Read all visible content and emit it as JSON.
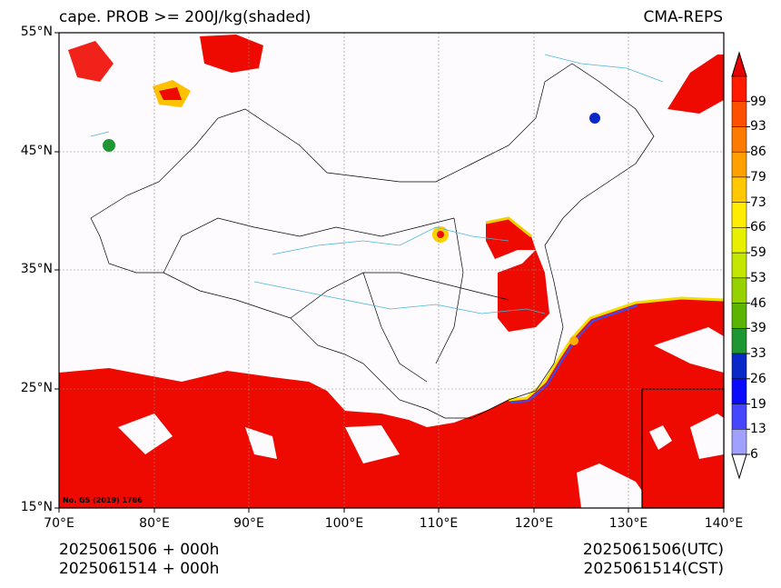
{
  "title": {
    "left": "cape. PROB >= 200J/kg(shaded)",
    "right": "CMA-REPS"
  },
  "axes": {
    "y_ticks": [
      "55°N",
      "45°N",
      "35°N",
      "25°N",
      "15°N"
    ],
    "x_ticks": [
      "70°E",
      "80°E",
      "90°E",
      "100°E",
      "110°E",
      "120°E",
      "130°E",
      "140°E"
    ],
    "lat_range": [
      15,
      55
    ],
    "lon_range": [
      70,
      140
    ]
  },
  "footer": {
    "left_line1": "2025061506  +  000h",
    "left_line2": "2025061514  +  000h",
    "right_line1": "2025061506(UTC)",
    "right_line2": "2025061514(CST)"
  },
  "map_note": "No. GS (2019) 1786",
  "colorbar": {
    "levels": [
      "99",
      "93",
      "86",
      "79",
      "73",
      "66",
      "59",
      "53",
      "46",
      "39",
      "33",
      "26",
      "19",
      "13",
      "6"
    ],
    "colors": [
      "#ff1a00",
      "#ff5000",
      "#ff7a00",
      "#ffa000",
      "#ffc800",
      "#ffec00",
      "#e6f000",
      "#c4e600",
      "#96d200",
      "#5ab400",
      "#1e9632",
      "#0a28c8",
      "#0a0aff",
      "#4646ff",
      "#a0a0ff"
    ],
    "extend_top_color": "#e60000",
    "extend_bottom_color": "#ffffff"
  }
}
